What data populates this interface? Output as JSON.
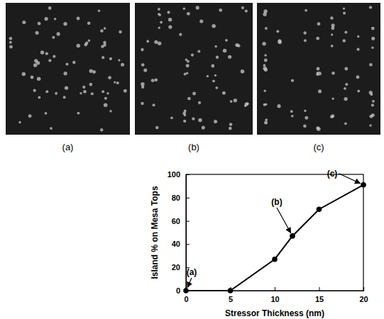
{
  "chart_data": {
    "type": "line",
    "x": [
      0,
      5,
      10,
      12,
      15,
      20
    ],
    "values": [
      0,
      0,
      27,
      47,
      70,
      91
    ],
    "xlim": [
      0,
      20
    ],
    "xticks": [
      0,
      5,
      10,
      15,
      20
    ],
    "ylim": [
      0,
      100
    ],
    "yticks": [
      0,
      20,
      40,
      60,
      80,
      100
    ],
    "x_label": "Stressor Thickness (nm)",
    "y_label": "Island % on Mesa Tops",
    "color": "#000000",
    "marker": "circle",
    "grid": false,
    "panel_labels": [
      "(a)",
      "(b)",
      "(c)"
    ],
    "annotations": [
      {
        "text": "(a)",
        "x": 0,
        "y": 0
      },
      {
        "text": "(b)",
        "x": 12,
        "y": 47
      },
      {
        "text": "(c)",
        "x": 20,
        "y": 91
      }
    ]
  }
}
